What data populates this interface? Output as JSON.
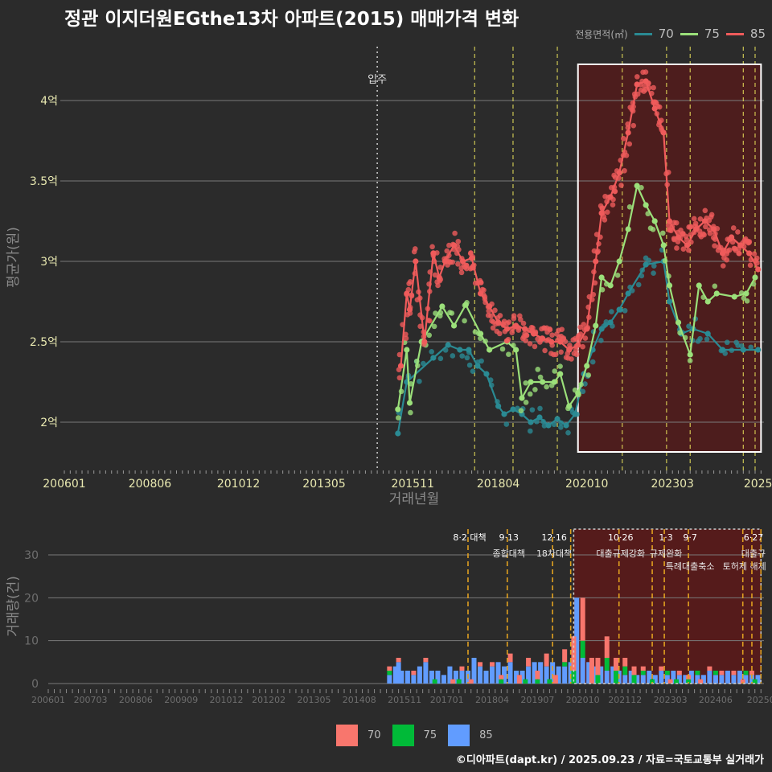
{
  "title": "정관 이지더원EGthe13차 아파트(2015) 매매가격 변화",
  "caption": "©디아파트(dapt.kr) / 2025.09.23 / 자료=국토교통부 실거래가",
  "legend_top": {
    "title": "전용면적(㎡)",
    "items": [
      {
        "label": "70",
        "color": "#2a8a93"
      },
      {
        "label": "75",
        "color": "#9be07a"
      },
      {
        "label": "85",
        "color": "#ef5b5b"
      }
    ]
  },
  "legend_bottom": {
    "items": [
      {
        "label": "70",
        "color": "#f8766d"
      },
      {
        "label": "75",
        "color": "#00ba38"
      },
      {
        "label": "85",
        "color": "#619cff"
      }
    ]
  },
  "colors": {
    "background": "#2b2b2b",
    "grid": "#7a7a7a",
    "tick_text_top": "#e8e8b0",
    "tick_text_bottom": "#6e6e6e",
    "axis_title": "#8a8a8a",
    "policy_line_top": "#e8e05a",
    "policy_line_bottom": "#e0a020",
    "highlight_fill": "#5a1a1a",
    "s70": "#2a8a93",
    "s75": "#9be07a",
    "s85": "#ef5b5b",
    "b70": "#f8766d",
    "b75": "#00ba38",
    "b85": "#619cff"
  },
  "chart_data": [
    {
      "type": "line",
      "title": "정관 이지더원EGthe13차 아파트(2015) 매매가격 변화",
      "xlabel": "거래년월",
      "ylabel": "평균가(원)",
      "x_range": [
        "2006-01",
        "2025-10"
      ],
      "ylim": [
        1.7,
        4.35
      ],
      "yticks": [
        2,
        2.5,
        3,
        3.5,
        4
      ],
      "ytick_labels": [
        "2억",
        "2.5억",
        "3억",
        "3.5억",
        "4억"
      ],
      "xticks": [
        "2006-01",
        "2008-06",
        "2010-12",
        "2013-05",
        "2015-11",
        "2018-04",
        "2020-10",
        "2023-03",
        "2025-08"
      ],
      "xtick_labels": [
        "200601",
        "200806",
        "201012",
        "201305",
        "201511",
        "201804",
        "202010",
        "202303",
        "2025"
      ],
      "move_in": {
        "date": "2014-11",
        "label": "입주"
      },
      "policy_lines": [
        "2017-08",
        "2018-09",
        "2019-12",
        "2021-10",
        "2023-01",
        "2023-09",
        "2025-03",
        "2025-07"
      ],
      "highlight_range": [
        "2020-07",
        "2025-09"
      ],
      "series": [
        {
          "name": "70",
          "points": [
            [
              "2015-06",
              1.93
            ],
            [
              "2015-09",
              2.25
            ],
            [
              "2016-06",
              2.4
            ],
            [
              "2016-11",
              2.48
            ],
            [
              "2017-03",
              2.45
            ],
            [
              "2017-06",
              2.45
            ],
            [
              "2017-09",
              2.35
            ],
            [
              "2017-12",
              2.3
            ],
            [
              "2018-04",
              2.1
            ],
            [
              "2018-06",
              2.05
            ],
            [
              "2018-09",
              2.08
            ],
            [
              "2018-12",
              2.05
            ],
            [
              "2019-03",
              2.0
            ],
            [
              "2019-06",
              2.03
            ],
            [
              "2019-09",
              1.98
            ],
            [
              "2019-12",
              2.02
            ],
            [
              "2020-03",
              1.98
            ],
            [
              "2020-06",
              2.05
            ],
            [
              "2020-09",
              2.3
            ],
            [
              "2020-12",
              2.45
            ],
            [
              "2021-03",
              2.58
            ],
            [
              "2021-06",
              2.62
            ],
            [
              "2021-09",
              2.7
            ],
            [
              "2021-12",
              2.8
            ],
            [
              "2022-06",
              2.98
            ],
            [
              "2022-12",
              3.0
            ],
            [
              "2023-02",
              2.75
            ],
            [
              "2023-06",
              2.55
            ],
            [
              "2023-10",
              2.58
            ],
            [
              "2024-03",
              2.55
            ],
            [
              "2024-08",
              2.45
            ],
            [
              "2025-03",
              2.45
            ],
            [
              "2025-08",
              2.45
            ]
          ]
        },
        {
          "name": "75",
          "points": [
            [
              "2015-06",
              2.08
            ],
            [
              "2015-09",
              2.45
            ],
            [
              "2015-10",
              2.12
            ],
            [
              "2016-02",
              2.5
            ],
            [
              "2016-09",
              2.72
            ],
            [
              "2017-01",
              2.6
            ],
            [
              "2017-05",
              2.73
            ],
            [
              "2017-10",
              2.55
            ],
            [
              "2018-01",
              2.45
            ],
            [
              "2018-07",
              2.5
            ],
            [
              "2018-10",
              2.45
            ],
            [
              "2018-12",
              2.15
            ],
            [
              "2019-03",
              2.25
            ],
            [
              "2019-07",
              2.25
            ],
            [
              "2019-11",
              2.25
            ],
            [
              "2020-01",
              2.3
            ],
            [
              "2020-04",
              2.1
            ],
            [
              "2020-07",
              2.18
            ],
            [
              "2020-10",
              2.35
            ],
            [
              "2021-01",
              2.6
            ],
            [
              "2021-03",
              2.9
            ],
            [
              "2021-06",
              2.85
            ],
            [
              "2021-09",
              3.0
            ],
            [
              "2021-12",
              3.2
            ],
            [
              "2022-03",
              3.47
            ],
            [
              "2022-06",
              3.35
            ],
            [
              "2022-09",
              3.25
            ],
            [
              "2022-12",
              3.1
            ],
            [
              "2023-02",
              2.85
            ],
            [
              "2023-05",
              2.62
            ],
            [
              "2023-09",
              2.42
            ],
            [
              "2023-12",
              2.85
            ],
            [
              "2024-03",
              2.75
            ],
            [
              "2024-06",
              2.8
            ],
            [
              "2024-12",
              2.78
            ],
            [
              "2025-04",
              2.8
            ],
            [
              "2025-07",
              2.9
            ]
          ]
        },
        {
          "name": "85",
          "points": [
            [
              "2015-07",
              2.35
            ],
            [
              "2015-09",
              2.8
            ],
            [
              "2015-10",
              2.7
            ],
            [
              "2015-12",
              3.0
            ],
            [
              "2016-03",
              2.5
            ],
            [
              "2016-06",
              3.05
            ],
            [
              "2016-08",
              2.9
            ],
            [
              "2016-10",
              3.0
            ],
            [
              "2017-01",
              3.1
            ],
            [
              "2017-04",
              3.0
            ],
            [
              "2017-07",
              3.02
            ],
            [
              "2017-10",
              2.8
            ],
            [
              "2018-01",
              2.72
            ],
            [
              "2018-04",
              2.62
            ],
            [
              "2018-07",
              2.58
            ],
            [
              "2018-10",
              2.6
            ],
            [
              "2019-01",
              2.58
            ],
            [
              "2019-04",
              2.55
            ],
            [
              "2019-07",
              2.52
            ],
            [
              "2019-10",
              2.5
            ],
            [
              "2020-01",
              2.5
            ],
            [
              "2020-04",
              2.45
            ],
            [
              "2020-07",
              2.48
            ],
            [
              "2020-10",
              2.58
            ],
            [
              "2021-01",
              3.0
            ],
            [
              "2021-03",
              3.3
            ],
            [
              "2021-06",
              3.4
            ],
            [
              "2021-09",
              3.55
            ],
            [
              "2021-12",
              3.8
            ],
            [
              "2022-03",
              4.1
            ],
            [
              "2022-06",
              4.12
            ],
            [
              "2022-09",
              3.95
            ],
            [
              "2022-12",
              3.8
            ],
            [
              "2023-02",
              3.25
            ],
            [
              "2023-05",
              3.15
            ],
            [
              "2023-08",
              3.1
            ],
            [
              "2023-11",
              3.2
            ],
            [
              "2024-02",
              3.25
            ],
            [
              "2024-05",
              3.2
            ],
            [
              "2024-08",
              3.05
            ],
            [
              "2024-11",
              3.15
            ],
            [
              "2025-02",
              3.1
            ],
            [
              "2025-05",
              3.05
            ],
            [
              "2025-08",
              2.95
            ]
          ]
        }
      ]
    },
    {
      "type": "bar",
      "stacked": true,
      "ylabel": "거래량(건)",
      "ylim": [
        0,
        36
      ],
      "yticks": [
        0,
        10,
        20,
        30
      ],
      "ytick_labels": [
        "0",
        "10",
        "20",
        "30"
      ],
      "xticks": [
        "2006-01",
        "2007-03",
        "2008-06",
        "2009-09",
        "2010-12",
        "2012-02",
        "2013-05",
        "2014-08",
        "2015-11",
        "2017-01",
        "2018-04",
        "2019-07",
        "2020-10",
        "2021-12",
        "2023-03",
        "2024-06",
        "2025-09"
      ],
      "xtick_labels": [
        "200601",
        "200703",
        "200806",
        "200909",
        "201012",
        "201202",
        "201305",
        "201408",
        "201511",
        "201701",
        "201804",
        "201907",
        "202010",
        "202112",
        "202303",
        "202406",
        "20250"
      ],
      "highlight_range": [
        "2020-07",
        "2025-09"
      ],
      "policy_lines": [
        {
          "date": "2017-08",
          "date_label": "8·2 대책",
          "text": ""
        },
        {
          "date": "2018-09",
          "date_label": "9·13",
          "text": "종합대책"
        },
        {
          "date": "2019-12",
          "date_label": "12·16",
          "text": "18차대책"
        },
        {
          "date": "2020-06",
          "date_label": "",
          "text": ""
        },
        {
          "date": "2021-10",
          "date_label": "10·26",
          "text": "대출규제강화"
        },
        {
          "date": "2022-09",
          "date_label": "",
          "text": ""
        },
        {
          "date": "2023-01",
          "date_label": "1·3",
          "text": "규제완화"
        },
        {
          "date": "2023-09",
          "date_label": "9·7",
          "text": "특례대출축소"
        },
        {
          "date": "2025-03",
          "date_label": "",
          "text": "토허제 해제"
        },
        {
          "date": "2025-06",
          "date_label": "6·27",
          "text": "대출규"
        },
        {
          "date": "2025-09",
          "date_label": "",
          "text": ""
        }
      ],
      "series": [
        {
          "name": "70",
          "months": [
            "2015-06",
            "2015-09",
            "2016-02",
            "2016-06",
            "2017-03",
            "2017-06",
            "2017-09",
            "2017-12",
            "2018-04",
            "2018-07",
            "2018-10",
            "2019-01",
            "2019-04",
            "2019-07",
            "2019-10",
            "2020-01",
            "2020-04",
            "2020-07",
            "2020-10",
            "2021-01",
            "2021-03",
            "2021-06",
            "2021-09",
            "2021-12",
            "2022-03",
            "2022-06",
            "2022-12",
            "2023-03",
            "2023-06",
            "2023-09",
            "2024-01",
            "2024-04",
            "2024-08",
            "2024-12",
            "2025-03",
            "2025-06"
          ],
          "values": [
            1,
            1,
            1,
            1,
            1,
            1,
            1,
            1,
            1,
            1,
            2,
            2,
            2,
            2,
            3,
            2,
            3,
            8,
            10,
            6,
            4,
            5,
            3,
            2,
            2,
            1,
            1,
            1,
            1,
            1,
            1,
            1,
            1,
            1,
            1,
            1
          ]
        },
        {
          "name": "75",
          "months": [
            "2015-06",
            "2016-09",
            "2017-05",
            "2018-07",
            "2019-03",
            "2019-07",
            "2019-11",
            "2020-04",
            "2020-07",
            "2020-10",
            "2021-03",
            "2021-06",
            "2021-09",
            "2021-12",
            "2022-03",
            "2022-06",
            "2022-09",
            "2023-02",
            "2023-05",
            "2023-09",
            "2023-12",
            "2024-06",
            "2025-04",
            "2025-07"
          ],
          "values": [
            1,
            1,
            1,
            1,
            1,
            1,
            1,
            1,
            3,
            4,
            2,
            3,
            3,
            2,
            2,
            1,
            1,
            1,
            1,
            1,
            1,
            1,
            1,
            1
          ]
        },
        {
          "name": "85",
          "months": [
            "2015-06",
            "2015-08",
            "2015-09",
            "2015-10",
            "2015-12",
            "2016-02",
            "2016-04",
            "2016-06",
            "2016-08",
            "2016-10",
            "2016-12",
            "2017-02",
            "2017-04",
            "2017-06",
            "2017-08",
            "2017-10",
            "2017-12",
            "2018-02",
            "2018-04",
            "2018-06",
            "2018-08",
            "2018-10",
            "2018-12",
            "2019-02",
            "2019-04",
            "2019-06",
            "2019-08",
            "2019-10",
            "2019-12",
            "2020-02",
            "2020-04",
            "2020-06",
            "2020-08",
            "2020-10",
            "2020-12",
            "2021-02",
            "2021-04",
            "2021-06",
            "2021-08",
            "2021-10",
            "2021-12",
            "2022-02",
            "2022-04",
            "2022-06",
            "2022-08",
            "2022-10",
            "2022-12",
            "2023-02",
            "2023-04",
            "2023-06",
            "2023-08",
            "2023-10",
            "2023-12",
            "2024-02",
            "2024-04",
            "2024-06",
            "2024-08",
            "2024-10",
            "2024-12",
            "2025-02",
            "2025-04",
            "2025-06",
            "2025-08"
          ],
          "values": [
            2,
            4,
            5,
            3,
            3,
            2,
            4,
            5,
            3,
            3,
            2,
            4,
            3,
            3,
            3,
            6,
            4,
            3,
            4,
            5,
            4,
            5,
            3,
            3,
            4,
            5,
            5,
            4,
            5,
            4,
            4,
            5,
            20,
            6,
            5,
            4,
            4,
            3,
            4,
            3,
            2,
            3,
            2,
            2,
            3,
            2,
            3,
            2,
            3,
            2,
            2,
            3,
            2,
            2,
            3,
            2,
            2,
            3,
            2,
            3,
            2,
            2,
            2
          ]
        }
      ]
    }
  ]
}
